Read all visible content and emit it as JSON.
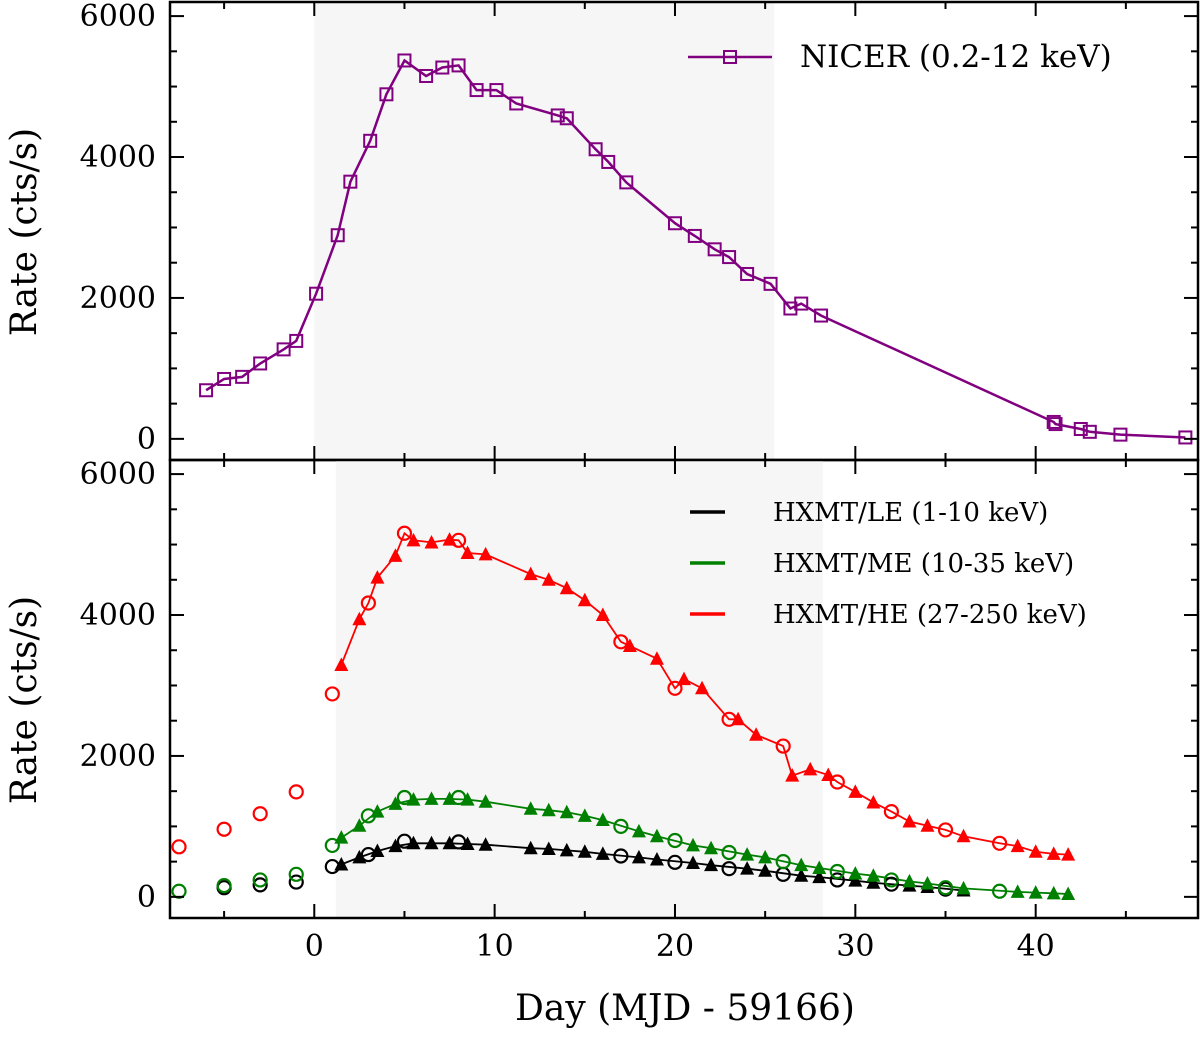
{
  "chart_data": [
    {
      "type": "line",
      "panel": "top",
      "xlabel": "",
      "ylabel": "Rate (cts/s)",
      "xlim": [
        -8,
        49
      ],
      "ylim": [
        -300,
        6200
      ],
      "x_ticks": [
        0,
        10,
        20,
        30,
        40
      ],
      "y_ticks": [
        0,
        2000,
        4000,
        6000
      ],
      "shaded_x": [
        0,
        25.5
      ],
      "grid": false,
      "legend_position": "top-right",
      "series": [
        {
          "name": "NICER (0.2-12 keV)",
          "color": "#800080",
          "marker": "open-square",
          "line": true,
          "points": [
            [
              -6,
              690
            ],
            [
              -5,
              850
            ],
            [
              -4,
              880
            ],
            [
              -3,
              1070
            ],
            [
              -1.7,
              1270
            ],
            [
              -1,
              1390
            ],
            [
              0.1,
              2060
            ],
            [
              1.3,
              2890
            ],
            [
              2,
              3650
            ],
            [
              3.1,
              4230
            ],
            [
              4,
              4890
            ],
            [
              5,
              5370
            ],
            [
              6.2,
              5150
            ],
            [
              7.1,
              5270
            ],
            [
              8,
              5300
            ],
            [
              9,
              4950
            ],
            [
              10.1,
              4950
            ],
            [
              11.2,
              4760
            ],
            [
              13.5,
              4590
            ],
            [
              14,
              4550
            ],
            [
              15.6,
              4110
            ],
            [
              16.3,
              3930
            ],
            [
              17.3,
              3640
            ],
            [
              20,
              3060
            ],
            [
              21.1,
              2880
            ],
            [
              22.2,
              2690
            ],
            [
              23,
              2580
            ],
            [
              24,
              2340
            ],
            [
              25.3,
              2200
            ],
            [
              26.4,
              1850
            ],
            [
              27,
              1920
            ],
            [
              28.1,
              1750
            ],
            [
              41,
              240
            ],
            [
              41.1,
              210
            ],
            [
              42.5,
              140
            ],
            [
              43,
              100
            ],
            [
              44.7,
              60
            ],
            [
              48.3,
              20
            ]
          ]
        }
      ]
    },
    {
      "type": "line",
      "panel": "bottom",
      "xlabel": "Day (MJD - 59166)",
      "ylabel": "Rate (cts/s)",
      "xlim": [
        -8,
        49
      ],
      "ylim": [
        -300,
        6200
      ],
      "x_ticks": [
        0,
        10,
        20,
        30,
        40
      ],
      "y_ticks": [
        0,
        2000,
        4000,
        6000
      ],
      "shaded_x": [
        1.2,
        28.2
      ],
      "grid": false,
      "legend_position": "top-right",
      "series": [
        {
          "name": "HXMT/LE (1-10 keV)",
          "color": "#000000",
          "circles": [
            [
              -5,
              130
            ],
            [
              -3,
              170
            ],
            [
              -1,
              210
            ],
            [
              1,
              430
            ],
            [
              3,
              600
            ],
            [
              5,
              790
            ],
            [
              8,
              780
            ],
            [
              17,
              580
            ],
            [
              20,
              490
            ],
            [
              23,
              400
            ],
            [
              26,
              320
            ],
            [
              29,
              240
            ],
            [
              32,
              180
            ],
            [
              35,
              110
            ]
          ],
          "triangles": [
            [
              1.5,
              460
            ],
            [
              2.5,
              560
            ],
            [
              3.5,
              650
            ],
            [
              4.5,
              720
            ],
            [
              5.5,
              760
            ],
            [
              6.5,
              760
            ],
            [
              7.5,
              760
            ],
            [
              8.5,
              750
            ],
            [
              9.5,
              740
            ],
            [
              12,
              690
            ],
            [
              13,
              680
            ],
            [
              14,
              660
            ],
            [
              15,
              640
            ],
            [
              16,
              610
            ],
            [
              18,
              560
            ],
            [
              19,
              530
            ],
            [
              21,
              480
            ],
            [
              22,
              450
            ],
            [
              24,
              400
            ],
            [
              25,
              370
            ],
            [
              27,
              300
            ],
            [
              28,
              280
            ],
            [
              30,
              230
            ],
            [
              31,
              200
            ],
            [
              33,
              160
            ],
            [
              34,
              140
            ],
            [
              36,
              90
            ]
          ]
        },
        {
          "name": "HXMT/ME (10-35 keV)",
          "color": "#008000",
          "circles": [
            [
              -7.5,
              80
            ],
            [
              -5,
              160
            ],
            [
              -3,
              240
            ],
            [
              -1,
              320
            ],
            [
              1,
              730
            ],
            [
              3,
              1150
            ],
            [
              5,
              1410
            ],
            [
              8,
              1410
            ],
            [
              17,
              1000
            ],
            [
              20,
              800
            ],
            [
              23,
              630
            ],
            [
              26,
              500
            ],
            [
              29,
              360
            ],
            [
              32,
              240
            ],
            [
              35,
              130
            ],
            [
              38,
              80
            ]
          ],
          "triangles": [
            [
              1.5,
              840
            ],
            [
              2.5,
              1010
            ],
            [
              3.5,
              1210
            ],
            [
              4.5,
              1320
            ],
            [
              5.5,
              1380
            ],
            [
              6.5,
              1390
            ],
            [
              7.5,
              1390
            ],
            [
              8.5,
              1380
            ],
            [
              9.5,
              1350
            ],
            [
              12,
              1250
            ],
            [
              13,
              1230
            ],
            [
              14,
              1200
            ],
            [
              15,
              1150
            ],
            [
              16,
              1090
            ],
            [
              18,
              930
            ],
            [
              19,
              860
            ],
            [
              21,
              730
            ],
            [
              22,
              690
            ],
            [
              24,
              600
            ],
            [
              25,
              560
            ],
            [
              27,
              450
            ],
            [
              28,
              410
            ],
            [
              30,
              330
            ],
            [
              31,
              300
            ],
            [
              33,
              220
            ],
            [
              34,
              190
            ],
            [
              36,
              120
            ],
            [
              39,
              70
            ],
            [
              40,
              60
            ],
            [
              41,
              50
            ],
            [
              41.8,
              40
            ]
          ]
        },
        {
          "name": "HXMT/HE (27-250 keV)",
          "color": "#ff0000",
          "circles": [
            [
              -7.5,
              710
            ],
            [
              -5,
              960
            ],
            [
              -3,
              1180
            ],
            [
              -1,
              1490
            ],
            [
              1,
              2880
            ],
            [
              3,
              4170
            ],
            [
              5,
              5160
            ],
            [
              8,
              5060
            ],
            [
              17,
              3620
            ],
            [
              20,
              2960
            ],
            [
              23,
              2520
            ],
            [
              26,
              2140
            ],
            [
              29,
              1630
            ],
            [
              32,
              1210
            ],
            [
              35,
              950
            ],
            [
              38,
              760
            ]
          ],
          "triangles": [
            [
              1.5,
              3290
            ],
            [
              2.5,
              3940
            ],
            [
              3.5,
              4530
            ],
            [
              4.5,
              4840
            ],
            [
              5.5,
              5060
            ],
            [
              6.5,
              5030
            ],
            [
              7.5,
              5070
            ],
            [
              8.5,
              4880
            ],
            [
              9.5,
              4860
            ],
            [
              12,
              4580
            ],
            [
              13,
              4500
            ],
            [
              14,
              4380
            ],
            [
              15,
              4210
            ],
            [
              16,
              4000
            ],
            [
              17.5,
              3560
            ],
            [
              19,
              3380
            ],
            [
              20.5,
              3090
            ],
            [
              21.5,
              2960
            ],
            [
              23.5,
              2520
            ],
            [
              24.5,
              2300
            ],
            [
              26.5,
              1720
            ],
            [
              27.5,
              1810
            ],
            [
              28.5,
              1730
            ],
            [
              30,
              1490
            ],
            [
              31,
              1340
            ],
            [
              33,
              1070
            ],
            [
              34,
              1010
            ],
            [
              36,
              860
            ],
            [
              39,
              720
            ],
            [
              40,
              640
            ],
            [
              41,
              610
            ],
            [
              41.8,
              600
            ]
          ],
          "line": [
            [
              1.5,
              3290
            ],
            [
              2.5,
              3940
            ],
            [
              3,
              4170
            ],
            [
              3.5,
              4530
            ],
            [
              4.5,
              4840
            ],
            [
              5,
              5160
            ],
            [
              5.5,
              5060
            ],
            [
              6.5,
              5030
            ],
            [
              7.5,
              5070
            ],
            [
              8,
              5060
            ],
            [
              8.5,
              4880
            ],
            [
              9.5,
              4860
            ],
            [
              12,
              4580
            ],
            [
              13,
              4500
            ],
            [
              14,
              4380
            ],
            [
              15,
              4210
            ],
            [
              16,
              4000
            ],
            [
              17,
              3620
            ],
            [
              17.5,
              3560
            ],
            [
              19,
              3380
            ],
            [
              20,
              2960
            ],
            [
              20.5,
              3090
            ],
            [
              21.5,
              2960
            ],
            [
              23,
              2520
            ],
            [
              23.5,
              2520
            ],
            [
              24.5,
              2300
            ],
            [
              26,
              2140
            ],
            [
              26.5,
              1720
            ],
            [
              27.5,
              1810
            ],
            [
              28.5,
              1730
            ],
            [
              29,
              1630
            ],
            [
              30,
              1490
            ],
            [
              31,
              1340
            ],
            [
              32,
              1210
            ],
            [
              33,
              1070
            ],
            [
              34,
              1010
            ],
            [
              35,
              950
            ],
            [
              36,
              860
            ],
            [
              38,
              760
            ],
            [
              39,
              720
            ],
            [
              40,
              640
            ],
            [
              41,
              610
            ],
            [
              41.8,
              600
            ]
          ]
        }
      ]
    }
  ]
}
